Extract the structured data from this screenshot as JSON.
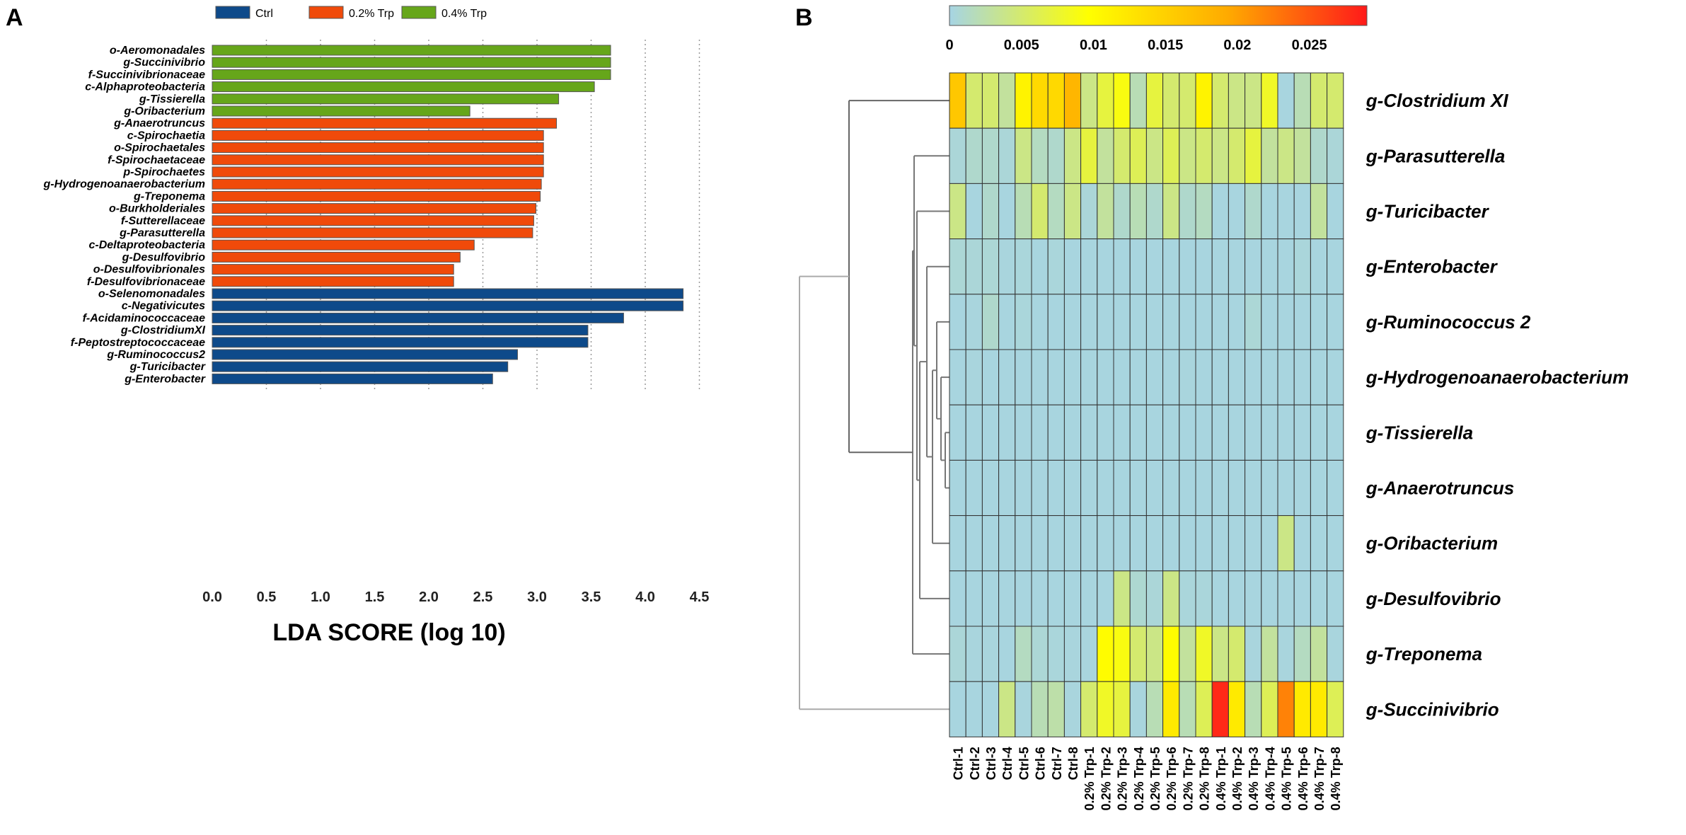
{
  "panels": {
    "a": "A",
    "b": "B"
  },
  "chart_data": [
    {
      "type": "bar",
      "orientation": "horizontal",
      "xlabel": "LDA SCORE (log 10)",
      "xlim": [
        0,
        4.5
      ],
      "xticks": [
        0.0,
        0.5,
        1.0,
        1.5,
        2.0,
        2.5,
        3.0,
        3.5,
        4.0,
        4.5
      ],
      "xtick_labels": [
        "0.0",
        "0.5",
        "1.0",
        "1.5",
        "2.0",
        "2.5",
        "3.0",
        "3.5",
        "4.0",
        "4.5"
      ],
      "grid": "vertical dotted",
      "legend": [
        {
          "name": "Ctrl",
          "color": "#0e4a8a"
        },
        {
          "name": "0.2% Trp",
          "color": "#f04a0a"
        },
        {
          "name": "0.4% Trp",
          "color": "#66a61a"
        }
      ],
      "bars": [
        {
          "label": "o-Aeromonadales",
          "value": 3.68,
          "group": 2
        },
        {
          "label": "g-Succinivibrio",
          "value": 3.68,
          "group": 2
        },
        {
          "label": "f-Succinivibrionaceae",
          "value": 3.68,
          "group": 2
        },
        {
          "label": "c-Alphaproteobacteria",
          "value": 3.53,
          "group": 2
        },
        {
          "label": "g-Tissierella",
          "value": 3.2,
          "group": 2
        },
        {
          "label": "g-Oribacterium",
          "value": 2.38,
          "group": 2
        },
        {
          "label": "g-Anaerotruncus",
          "value": 3.18,
          "group": 1
        },
        {
          "label": "c-Spirochaetia",
          "value": 3.06,
          "group": 1
        },
        {
          "label": "o-Spirochaetales",
          "value": 3.06,
          "group": 1
        },
        {
          "label": "f-Spirochaetaceae",
          "value": 3.06,
          "group": 1
        },
        {
          "label": "p-Spirochaetes",
          "value": 3.06,
          "group": 1
        },
        {
          "label": "g-Hydrogenoanaerobacterium",
          "value": 3.04,
          "group": 1
        },
        {
          "label": "g-Treponema",
          "value": 3.03,
          "group": 1
        },
        {
          "label": "o-Burkholderiales",
          "value": 2.99,
          "group": 1
        },
        {
          "label": "f-Sutterellaceae",
          "value": 2.97,
          "group": 1
        },
        {
          "label": "g-Parasutterella",
          "value": 2.96,
          "group": 1
        },
        {
          "label": "c-Deltaproteobacteria",
          "value": 2.42,
          "group": 1
        },
        {
          "label": "g-Desulfovibrio",
          "value": 2.29,
          "group": 1
        },
        {
          "label": "o-Desulfovibrionales",
          "value": 2.23,
          "group": 1
        },
        {
          "label": "f-Desulfovibrionaceae",
          "value": 2.23,
          "group": 1
        },
        {
          "label": "o-Selenomonadales",
          "value": 4.35,
          "group": 0
        },
        {
          "label": "c-Negativicutes",
          "value": 4.35,
          "group": 0
        },
        {
          "label": "f-Acidaminococcaceae",
          "value": 3.8,
          "group": 0
        },
        {
          "label": "g-ClostridiumXI",
          "value": 3.47,
          "group": 0
        },
        {
          "label": "f-Peptostreptococcaceae",
          "value": 3.47,
          "group": 0
        },
        {
          "label": "g-Ruminococcus2",
          "value": 2.82,
          "group": 0
        },
        {
          "label": "g-Turicibacter",
          "value": 2.73,
          "group": 0
        },
        {
          "label": "g-Enterobacter",
          "value": 2.59,
          "group": 0
        }
      ]
    },
    {
      "type": "heatmap",
      "colorbar": {
        "range": [
          0,
          0.029
        ],
        "ticks": [
          0,
          0.005,
          0.01,
          0.015,
          0.02,
          0.025
        ],
        "tick_labels": [
          "0",
          "0.005",
          "0.01",
          "0.015",
          "0.02",
          "0.025"
        ],
        "stops": [
          "#a6d4e4",
          "#ffff00",
          "#ffaa00",
          "#ff1a1a"
        ]
      },
      "columns": [
        "Ctrl-1",
        "Ctrl-2",
        "Ctrl-3",
        "Ctrl-4",
        "Ctrl-5",
        "Ctrl-6",
        "Ctrl-7",
        "Ctrl-8",
        "0.2% Trp-1",
        "0.2% Trp-2",
        "0.2% Trp-3",
        "0.2% Trp-4",
        "0.2% Trp-5",
        "0.2% Trp-6",
        "0.2% Trp-7",
        "0.2% Trp-8",
        "0.4% Trp-1",
        "0.4% Trp-2",
        "0.4% Trp-3",
        "0.4% Trp-4",
        "0.4% Trp-5",
        "0.4% Trp-6",
        "0.4% Trp-7",
        "0.4% Trp-8"
      ],
      "rows": [
        "g-Clostridium XI",
        "g-Parasutterella",
        "g-Turicibacter",
        "g-Enterobacter",
        "g-Ruminococcus 2",
        "g-Hydrogenoanaerobacterium",
        "g-Tissierella",
        "g-Anaerotruncus",
        "g-Oribacterium",
        "g-Desulfovibrio",
        "g-Treponema",
        "g-Succinivibrio"
      ],
      "values": [
        [
          0.016,
          0.005,
          0.005,
          0.003,
          0.011,
          0.014,
          0.014,
          0.018,
          0.004,
          0.007,
          0.009,
          0.002,
          0.007,
          0.005,
          0.005,
          0.011,
          0.005,
          0.004,
          0.004,
          0.008,
          0.0002,
          0.002,
          0.005,
          0.005
        ],
        [
          0.0005,
          0.001,
          0.001,
          0.0005,
          0.004,
          0.0015,
          0.001,
          0.004,
          0.007,
          0.003,
          0.005,
          0.006,
          0.004,
          0.006,
          0.004,
          0.005,
          0.004,
          0.005,
          0.007,
          0.003,
          0.004,
          0.003,
          0.001,
          0.0005
        ],
        [
          0.004,
          0.0002,
          0.001,
          0.0002,
          0.002,
          0.005,
          0.0015,
          0.004,
          0.0005,
          0.003,
          0.001,
          0.002,
          0.001,
          0.004,
          0.001,
          0.0015,
          0.0002,
          0.0002,
          0.001,
          0.0002,
          0.0002,
          0.0002,
          0.003,
          0.0002
        ],
        [
          0.0006,
          0.0005,
          0.0006,
          0.0003,
          0.0004,
          0.0002,
          0.0004,
          0.0002,
          0.0002,
          0.0002,
          0.0002,
          0.0002,
          0.0002,
          0.0002,
          0.0002,
          0.0002,
          0.0002,
          0.0002,
          0.0002,
          0.0002,
          0.0002,
          0.0004,
          0.0002,
          0.0002
        ],
        [
          0.0002,
          0.0003,
          0.001,
          0.0002,
          0.0004,
          0.0002,
          0.0002,
          0.0002,
          0.0002,
          0.0002,
          0.0002,
          0.0002,
          0.0002,
          0.0002,
          0.0002,
          0.0002,
          0.0002,
          0.0002,
          0.0006,
          0.0002,
          0.0002,
          0.0002,
          0.0002,
          0.0002
        ],
        [
          0.0002,
          0.0003,
          0.0002,
          0.0002,
          0.0002,
          0.0002,
          0.0002,
          0.0002,
          0.0002,
          0.0002,
          0.0002,
          0.0002,
          0.0002,
          0.0002,
          0.0003,
          0.0002,
          0.0002,
          0.0002,
          0.0002,
          0.0002,
          0.0002,
          0.0002,
          0.0002,
          0.0002
        ],
        [
          0.0002,
          0.0002,
          0.0002,
          0.0002,
          0.0002,
          0.0002,
          0.0002,
          0.0002,
          0.0002,
          0.0002,
          0.0002,
          0.0002,
          0.0002,
          0.0002,
          0.0002,
          0.0002,
          0.0002,
          0.0002,
          0.0002,
          0.0002,
          0.0002,
          0.0002,
          0.0002,
          0.0002
        ],
        [
          0.0002,
          0.0002,
          0.0002,
          0.0002,
          0.0002,
          0.0002,
          0.0002,
          0.0002,
          0.0002,
          0.0002,
          0.0002,
          0.0002,
          0.0002,
          0.0002,
          0.0002,
          0.0002,
          0.0002,
          0.0002,
          0.0002,
          0.0002,
          0.0002,
          0.0002,
          0.0002,
          0.0002
        ],
        [
          0.0002,
          0.0002,
          0.0002,
          0.0002,
          0.0002,
          0.0002,
          0.0002,
          0.0002,
          0.0002,
          0.0002,
          0.0002,
          0.0002,
          0.0002,
          0.0002,
          0.0002,
          0.0002,
          0.0002,
          0.0002,
          0.0002,
          0.0002,
          0.004,
          0.0002,
          0.0002,
          0.0002
        ],
        [
          0.0002,
          0.0002,
          0.0002,
          0.0002,
          0.0002,
          0.0002,
          0.0002,
          0.0002,
          0.0002,
          0.0002,
          0.004,
          0.0008,
          0.0005,
          0.004,
          0.0004,
          0.0004,
          0.0002,
          0.0002,
          0.0002,
          0.0002,
          0.0002,
          0.0002,
          0.0002,
          0.0002
        ],
        [
          0.0005,
          0.0003,
          0.0003,
          0.0002,
          0.0015,
          0.0006,
          0.0004,
          0.0003,
          0.0003,
          0.01,
          0.009,
          0.005,
          0.004,
          0.01,
          0.003,
          0.008,
          0.004,
          0.005,
          0.0003,
          0.003,
          0.0003,
          0.0015,
          0.003,
          0.0003
        ],
        [
          0.0002,
          0.0002,
          0.0002,
          0.004,
          0.0003,
          0.002,
          0.0025,
          0.0003,
          0.005,
          0.008,
          0.007,
          0.0003,
          0.002,
          0.012,
          0.002,
          0.006,
          0.028,
          0.012,
          0.002,
          0.006,
          0.022,
          0.012,
          0.012,
          0.006
        ]
      ]
    }
  ]
}
